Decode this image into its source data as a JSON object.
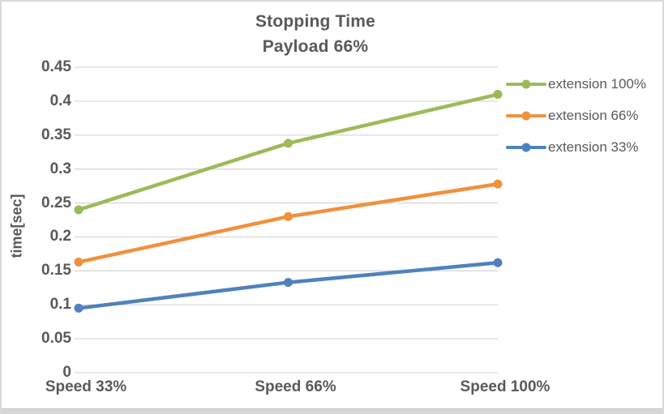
{
  "chart": {
    "title_line1": "Stopping Time",
    "title_line2": "Payload 66%"
  },
  "chart_data": {
    "type": "line",
    "title": "Stopping Time Payload 66%",
    "categories": [
      "Speed 33%",
      "Speed 66%",
      "Speed 100%"
    ],
    "series": [
      {
        "name": "extension 100%",
        "color": "#9BBB59",
        "values": [
          0.24,
          0.338,
          0.41
        ]
      },
      {
        "name": "extension 66%",
        "color": "#F0913D",
        "values": [
          0.163,
          0.23,
          0.278
        ]
      },
      {
        "name": "extension 33%",
        "color": "#4F81BD",
        "values": [
          0.095,
          0.133,
          0.162
        ]
      }
    ],
    "xlabel": "",
    "ylabel": "time[sec]",
    "ylim": [
      0,
      0.45
    ],
    "ytick_step": 0.05,
    "grid": true,
    "legend_position": "right",
    "marker": "circle"
  },
  "colors": {
    "text": "#595959",
    "grid": "#D9D9D9",
    "border": "#D9D9D9"
  }
}
